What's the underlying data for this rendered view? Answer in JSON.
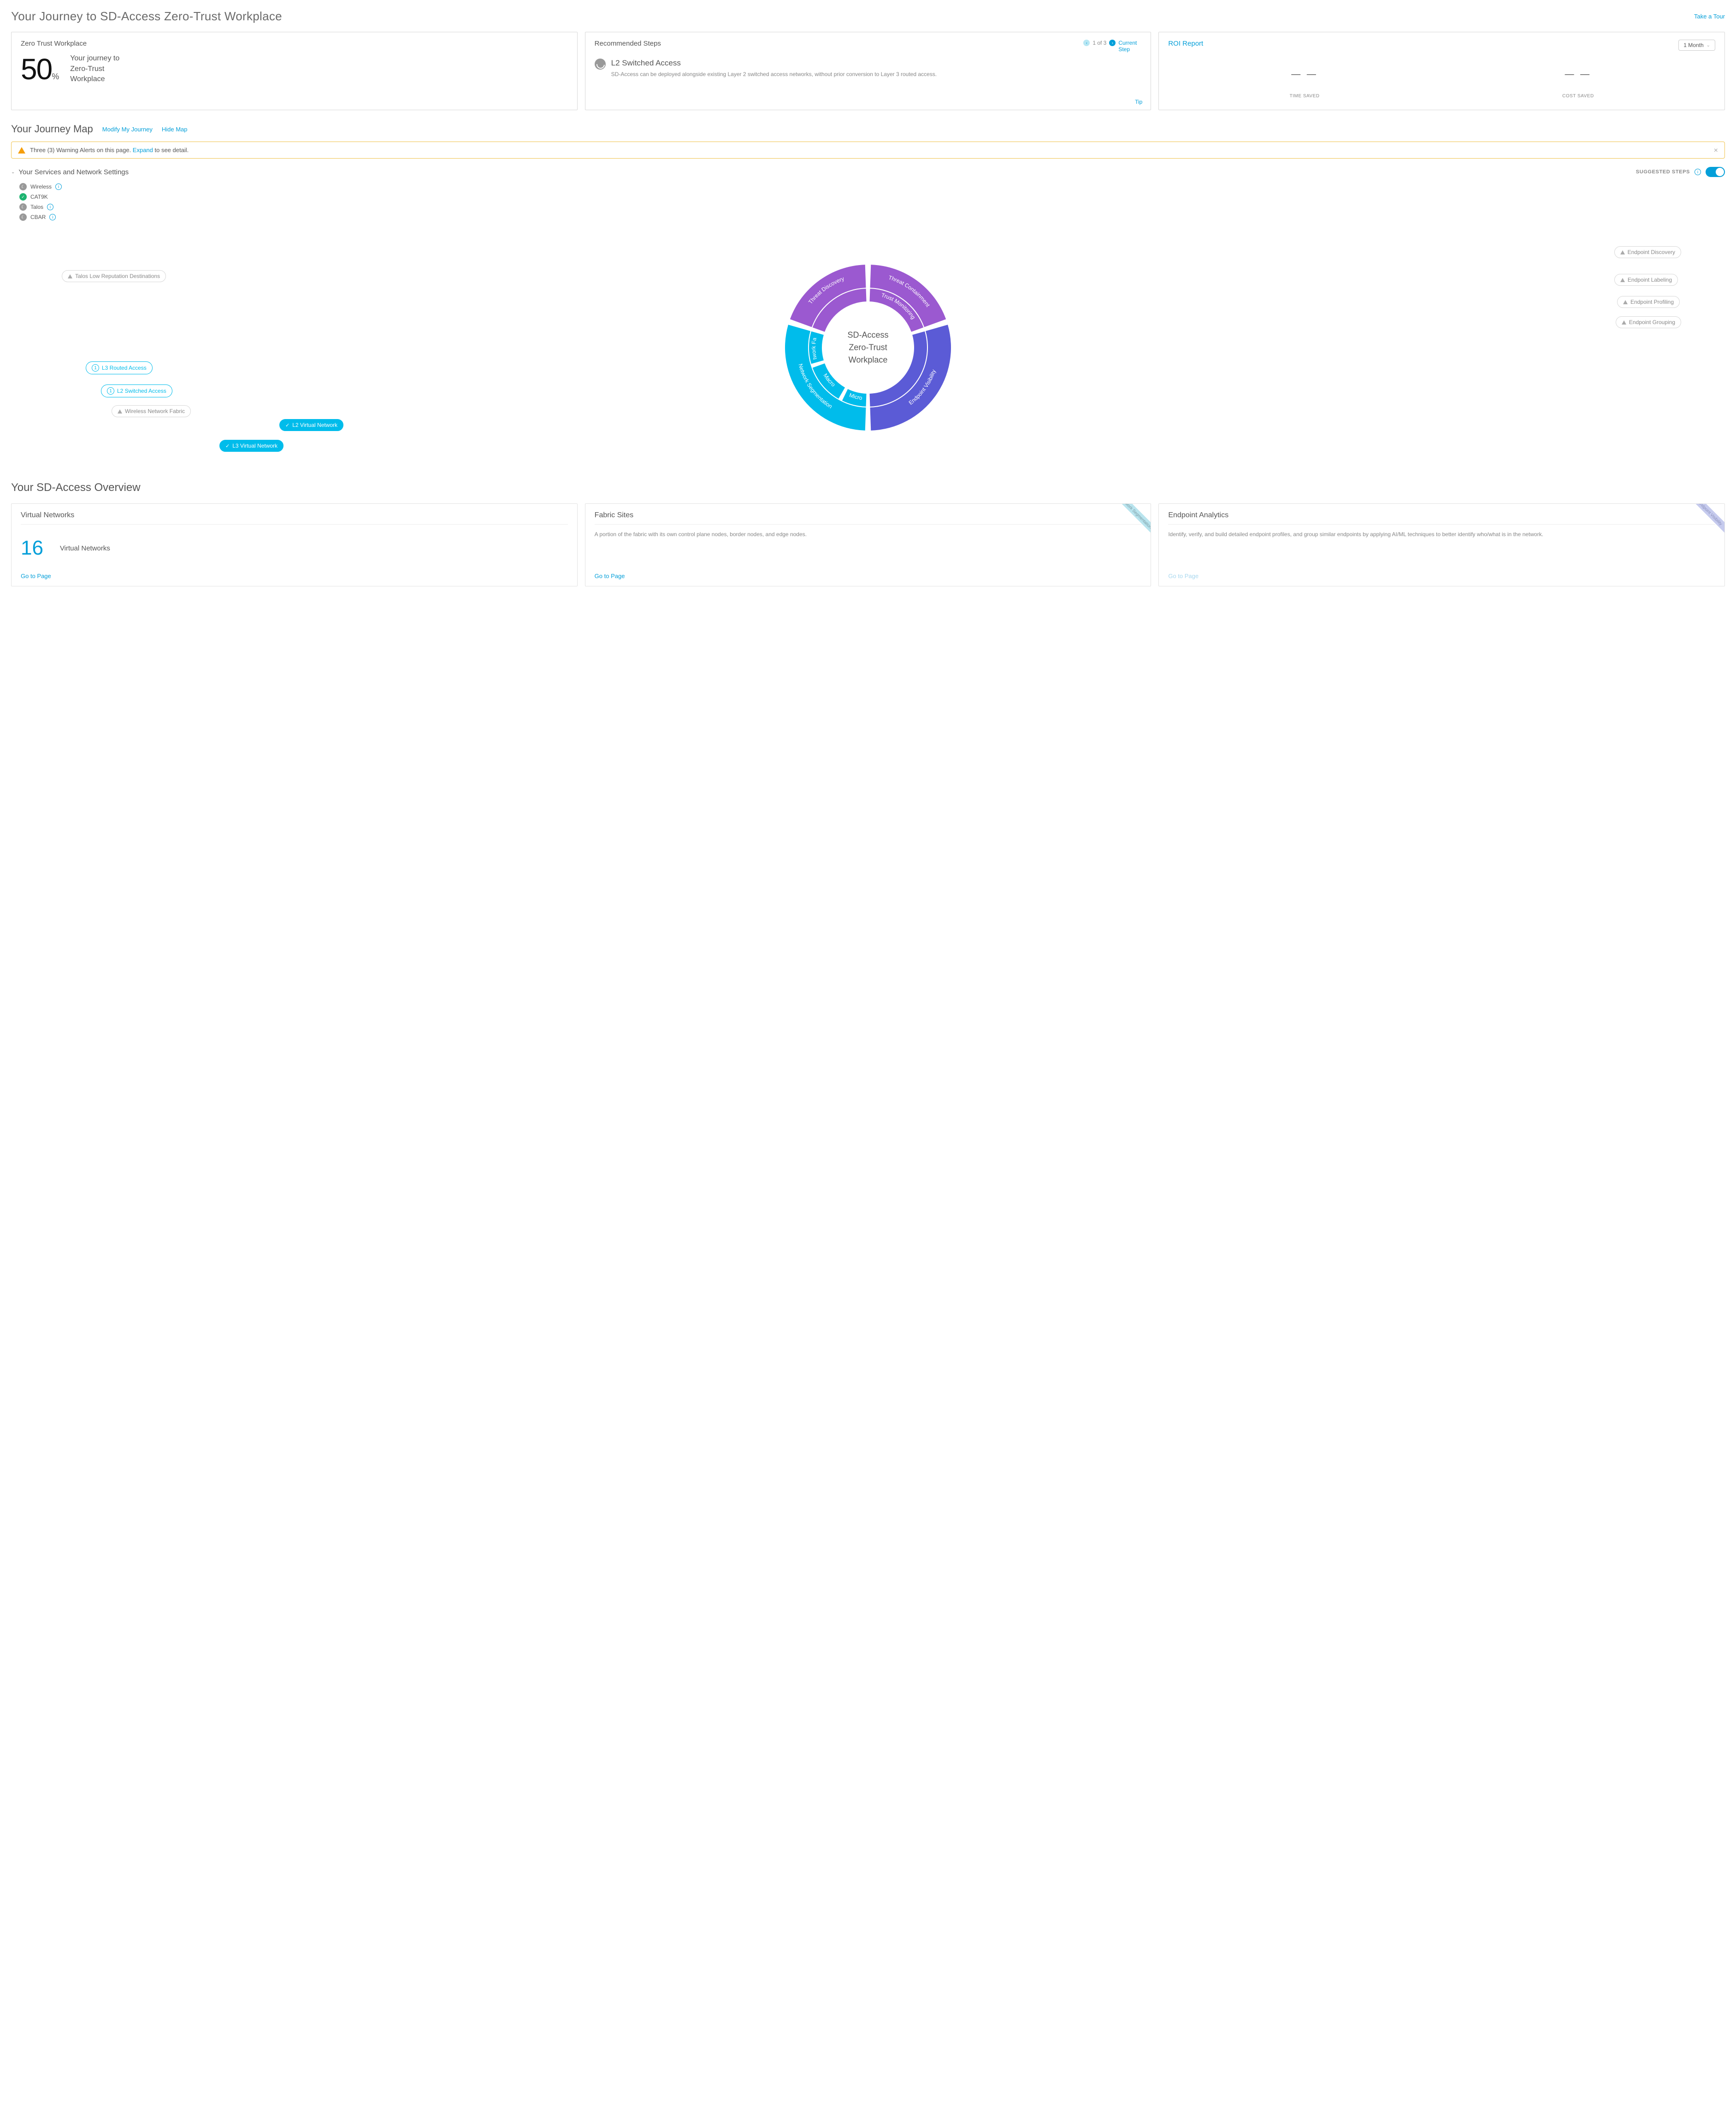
{
  "page_title": "Your Journey to SD-Access Zero-Trust Workplace",
  "take_tour": "Take a Tour",
  "colors": {
    "accent": "#049fd9",
    "purple": "#9b59d0",
    "indigo": "#5b5bd6",
    "teal": "#00bceb",
    "warn": "#f59e0b",
    "ok": "#1eb471",
    "muted": "#999999"
  },
  "cards": {
    "zero_trust": {
      "title": "Zero Trust Workplace",
      "percent": "50",
      "percent_unit": "%",
      "caption": "Your journey to Zero-Trust Workplace"
    },
    "recommended": {
      "title": "Recommended Steps",
      "step_counter": "1 of 3",
      "current_step": "Current Step",
      "item_title": "L2 Switched Access",
      "item_desc": "SD-Access can be deployed alongside existing Layer 2 switched access networks, without prior conversion to Layer 3 routed access.",
      "tip": "Tip"
    },
    "roi": {
      "title": "ROI Report",
      "dropdown": "1 Month",
      "time_val": "— —",
      "time_lbl": "TIME SAVED",
      "cost_val": "— —",
      "cost_lbl": "COST SAVED"
    }
  },
  "journey_map": {
    "title": "Your Journey Map",
    "modify": "Modify My Journey",
    "hide": "Hide Map"
  },
  "alert": {
    "text_prefix": "Three (3) Warning Alerts on this page. ",
    "expand": "Expand",
    "text_suffix": " to see detail."
  },
  "services": {
    "title": "Your Services and Network Settings",
    "suggested": "SUGGESTED STEPS",
    "items": [
      {
        "label": "Wireless",
        "status": "moon",
        "info": true
      },
      {
        "label": "CAT9K",
        "status": "ok",
        "info": false
      },
      {
        "label": "Talos",
        "status": "moon",
        "info": true
      },
      {
        "label": "CBAR",
        "status": "moon",
        "info": true
      }
    ]
  },
  "donut": {
    "center_l1": "SD-Access",
    "center_l2": "Zero-Trust",
    "center_l3": "Workplace",
    "segments": {
      "outer": [
        {
          "label": "Threat Containment",
          "color": "#9b59d0",
          "start": -90,
          "end": -18
        },
        {
          "label": "Endpoint Visibility",
          "color": "#5b5bd6",
          "start": -18,
          "end": 90
        },
        {
          "label": "Network Segmentation",
          "color": "#00bceb",
          "start": 90,
          "end": 198
        },
        {
          "label": "Threat Discovery",
          "color": "#9b59d0",
          "start": 198,
          "end": 270
        }
      ],
      "inner": [
        {
          "label": "Trust Monitoring",
          "color": "#9b59d0",
          "start": -90,
          "end": -18
        },
        {
          "label": "",
          "color": "#5b5bd6",
          "start": -18,
          "end": 90
        },
        {
          "label": "Micro",
          "color": "#00bceb",
          "start": 90,
          "end": 118
        },
        {
          "label": "Macro",
          "color": "#00bceb",
          "start": 118,
          "end": 162
        },
        {
          "label": "Network Fabric",
          "color": "#00bceb",
          "start": 162,
          "end": 198
        },
        {
          "label": "",
          "color": "#9b59d0",
          "start": 198,
          "end": 270
        }
      ]
    },
    "callouts_right": [
      {
        "label": "Endpoint Discovery",
        "type": "warn"
      },
      {
        "label": "Endpoint Labeling",
        "type": "warn"
      },
      {
        "label": "Endpoint Profiling",
        "type": "warn"
      },
      {
        "label": "Endpoint Grouping",
        "type": "warn"
      }
    ],
    "callouts_left": [
      {
        "label": "Talos Low Reputation Destinations",
        "type": "warn"
      }
    ],
    "callouts_bottom_left": [
      {
        "label": "L3 Routed Access",
        "type": "num",
        "num": "1"
      },
      {
        "label": "L2 Switched Access",
        "type": "num",
        "num": "1"
      },
      {
        "label": "Wireless Network Fabric",
        "type": "warn"
      }
    ],
    "callouts_bottom": [
      {
        "label": "L2 Virtual Network",
        "type": "check"
      },
      {
        "label": "L3 Virtual Network",
        "type": "check"
      }
    ]
  },
  "overview": {
    "title": "Your SD-Access Overview",
    "virtual_networks": {
      "title": "Virtual Networks",
      "count": "16",
      "label": "Virtual Networks",
      "go": "Go to Page"
    },
    "fabric_sites": {
      "title": "Fabric Sites",
      "ribbon": "Network Segmentation",
      "desc": "A portion of the fabric with its own control plane nodes, border nodes, and edge nodes.",
      "go": "Go to Page"
    },
    "endpoint_analytics": {
      "title": "Endpoint Analytics",
      "ribbon": "Endpoint Visibility",
      "desc": "Identify, verify, and build detailed endpoint profiles, and group similar endpoints by applying AI/ML techniques to better identify who/what is in the network.",
      "go": "Go to Page"
    }
  }
}
